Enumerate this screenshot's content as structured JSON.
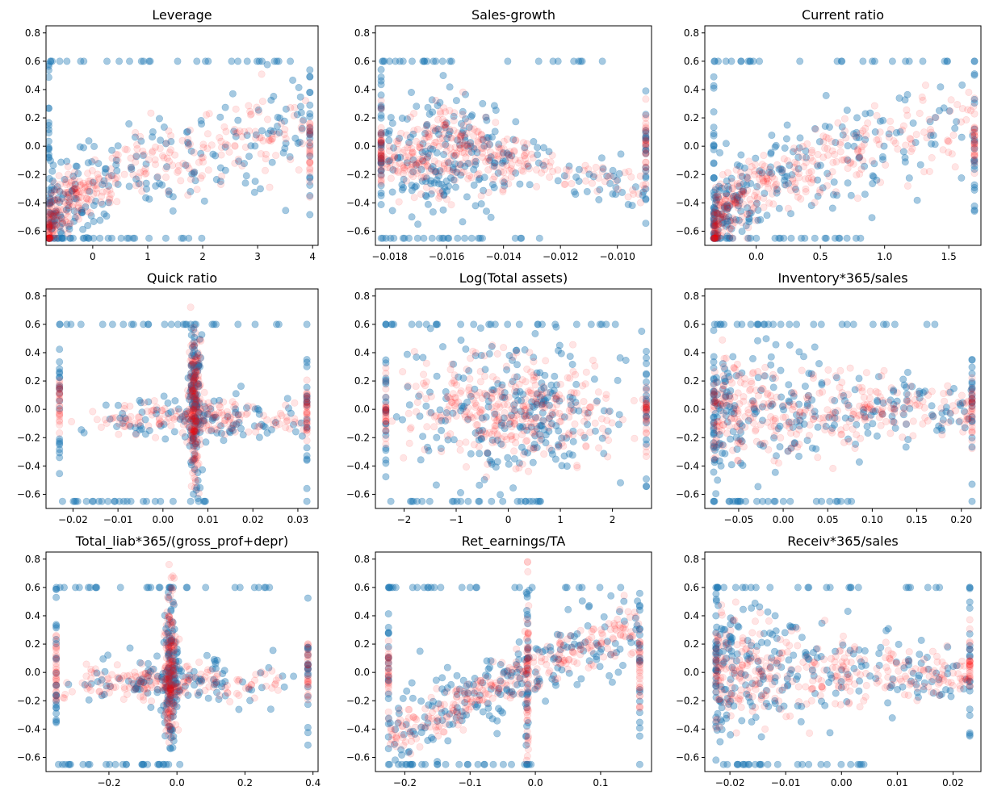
{
  "colors": {
    "series_blue": "#1f77b4",
    "series_red": "#ff0000",
    "background": "#ffffff",
    "axis": "#000000"
  },
  "chart_data": [
    {
      "type": "scatter",
      "title": "Leverage",
      "xlim": [
        -0.85,
        4.1
      ],
      "ylim": [
        -0.7,
        0.85
      ],
      "xticks": [
        0,
        1,
        2,
        3,
        4
      ],
      "xticklabels": [
        "0",
        "1",
        "2",
        "3",
        "4"
      ],
      "yticks": [
        -0.6,
        -0.4,
        -0.2,
        0.0,
        0.2,
        0.4,
        0.6,
        0.8
      ],
      "yticklabels": [
        "−0.6",
        "−0.4",
        "−0.2",
        "0.0",
        "0.2",
        "0.4",
        "0.6",
        "0.8"
      ],
      "series": [
        {
          "name": "blue",
          "color": "#1f77b4",
          "shape": "asc-log",
          "xmin": -0.8,
          "xmax": 3.95,
          "capmin": -0.65,
          "capmax": 0.6,
          "left_edge": -0.8,
          "right_edge": 3.95
        },
        {
          "name": "red",
          "color": "#ff0000",
          "shape": "asc-log",
          "xmin": -0.8,
          "xmax": 3.95,
          "capmin": -0.65,
          "capmax": 0.78,
          "right_edge": 3.95
        }
      ]
    },
    {
      "type": "scatter",
      "title": "Sales-growth",
      "xlim": [
        -0.0185,
        -0.0088
      ],
      "ylim": [
        -0.7,
        0.85
      ],
      "xticks": [
        -0.018,
        -0.016,
        -0.014,
        -0.012,
        -0.01
      ],
      "xticklabels": [
        "−0.018",
        "−0.016",
        "−0.014",
        "−0.012",
        "−0.010"
      ],
      "yticks": [
        -0.6,
        -0.4,
        -0.2,
        0.0,
        0.2,
        0.4,
        0.6,
        0.8
      ],
      "yticklabels": [
        "−0.6",
        "−0.4",
        "−0.2",
        "0.0",
        "0.2",
        "0.4",
        "0.6",
        "0.8"
      ],
      "series": [
        {
          "name": "blue",
          "color": "#1f77b4",
          "shape": "hump",
          "peak": -0.016,
          "xmin": -0.0183,
          "xmax": -0.009,
          "capmin": -0.65,
          "capmax": 0.6,
          "left_edge": -0.0183,
          "right_edge": -0.009
        },
        {
          "name": "red",
          "color": "#ff0000",
          "shape": "hump",
          "peak": -0.016,
          "xmin": -0.0183,
          "xmax": -0.009,
          "capmin": -0.65,
          "capmax": 0.78,
          "left_edge": -0.0183,
          "right_edge": -0.009
        }
      ]
    },
    {
      "type": "scatter",
      "title": "Current ratio",
      "xlim": [
        -0.4,
        1.75
      ],
      "ylim": [
        -0.7,
        0.85
      ],
      "xticks": [
        0,
        0.5,
        1.0,
        1.5
      ],
      "xticklabels": [
        "0.0",
        "0.5",
        "1.0",
        "1.5"
      ],
      "yticks": [
        -0.6,
        -0.4,
        -0.2,
        0.0,
        0.2,
        0.4,
        0.6,
        0.8
      ],
      "yticklabels": [
        "−0.6",
        "−0.4",
        "−0.2",
        "0.0",
        "0.2",
        "0.4",
        "0.6",
        "0.8"
      ],
      "series": [
        {
          "name": "blue",
          "color": "#1f77b4",
          "shape": "asc-log",
          "xmin": -0.33,
          "xmax": 1.7,
          "capmin": -0.65,
          "capmax": 0.6,
          "left_edge": -0.33,
          "right_edge": 1.7
        },
        {
          "name": "red",
          "color": "#ff0000",
          "shape": "asc-log",
          "xmin": -0.33,
          "xmax": 1.7,
          "capmin": -0.65,
          "capmax": 0.78,
          "right_edge": 1.7
        }
      ]
    },
    {
      "type": "scatter",
      "title": "Quick ratio",
      "xlim": [
        -0.026,
        0.0345
      ],
      "ylim": [
        -0.7,
        0.85
      ],
      "xticks": [
        -0.02,
        -0.01,
        0.0,
        0.01,
        0.02,
        0.03
      ],
      "xticklabels": [
        "−0.02",
        "−0.01",
        "0.00",
        "0.01",
        "0.02",
        "0.03"
      ],
      "yticks": [
        -0.6,
        -0.4,
        -0.2,
        0.0,
        0.2,
        0.4,
        0.6,
        0.8
      ],
      "yticklabels": [
        "−0.6",
        "−0.4",
        "−0.2",
        "0.0",
        "0.2",
        "0.4",
        "0.6",
        "0.8"
      ],
      "series": [
        {
          "name": "blue",
          "color": "#1f77b4",
          "shape": "cross",
          "center": 0.007,
          "xmin": -0.023,
          "xmax": 0.032,
          "capmin": -0.65,
          "capmax": 0.6,
          "left_edge": -0.023,
          "right_edge": 0.032
        },
        {
          "name": "red",
          "color": "#ff0000",
          "shape": "cross",
          "center": 0.007,
          "xmin": -0.023,
          "xmax": 0.032,
          "capmin": -0.65,
          "capmax": 0.78,
          "left_edge": -0.023,
          "right_edge": 0.032
        }
      ]
    },
    {
      "type": "scatter",
      "title": "Log(Total assets)",
      "xlim": [
        -2.55,
        2.75
      ],
      "ylim": [
        -0.7,
        0.85
      ],
      "xticks": [
        -2,
        -1,
        0,
        1,
        2
      ],
      "xticklabels": [
        "−2",
        "−1",
        "0",
        "1",
        "2"
      ],
      "yticks": [
        -0.6,
        -0.4,
        -0.2,
        0.0,
        0.2,
        0.4,
        0.6,
        0.8
      ],
      "yticklabels": [
        "−0.6",
        "−0.4",
        "−0.2",
        "0.0",
        "0.2",
        "0.4",
        "0.6",
        "0.8"
      ],
      "series": [
        {
          "name": "blue",
          "color": "#1f77b4",
          "shape": "band",
          "xmin": -2.35,
          "xmax": 2.65,
          "capmin": -0.65,
          "capmax": 0.6,
          "left_edge": -2.35,
          "right_edge": 2.65
        },
        {
          "name": "red",
          "color": "#ff0000",
          "shape": "band",
          "xmin": -2.35,
          "xmax": 2.65,
          "capmin": -0.65,
          "capmax": 0.78,
          "left_edge": -2.35,
          "right_edge": 2.65
        }
      ]
    },
    {
      "type": "scatter",
      "title": "Inventory*365/sales",
      "xlim": [
        -0.088,
        0.222
      ],
      "ylim": [
        -0.7,
        0.85
      ],
      "xticks": [
        -0.05,
        0.0,
        0.05,
        0.1,
        0.15,
        0.2
      ],
      "xticklabels": [
        "−0.05",
        "0.00",
        "0.05",
        "0.10",
        "0.15",
        "0.20"
      ],
      "yticks": [
        -0.6,
        -0.4,
        -0.2,
        0.0,
        0.2,
        0.4,
        0.6,
        0.8
      ],
      "yticklabels": [
        "−0.6",
        "−0.4",
        "−0.2",
        "0.0",
        "0.2",
        "0.4",
        "0.6",
        "0.8"
      ],
      "series": [
        {
          "name": "blue",
          "color": "#1f77b4",
          "shape": "funnel",
          "xmin": -0.078,
          "xmax": 0.212,
          "capmin": -0.65,
          "capmax": 0.6,
          "left_edge": -0.078,
          "right_edge": 0.212
        },
        {
          "name": "red",
          "color": "#ff0000",
          "shape": "funnel",
          "xmin": -0.078,
          "xmax": 0.212,
          "capmin": -0.65,
          "capmax": 0.78,
          "right_edge": 0.212
        }
      ]
    },
    {
      "type": "scatter",
      "title": "Total_liab*365/(gross_prof+depr)",
      "xlim": [
        -0.385,
        0.415
      ],
      "ylim": [
        -0.7,
        0.85
      ],
      "xticks": [
        -0.2,
        0.0,
        0.2,
        0.4
      ],
      "xticklabels": [
        "−0.2",
        "0.0",
        "0.2",
        "0.4"
      ],
      "yticks": [
        -0.6,
        -0.4,
        -0.2,
        0.0,
        0.2,
        0.4,
        0.6,
        0.8
      ],
      "yticklabels": [
        "−0.6",
        "−0.4",
        "−0.2",
        "0.0",
        "0.2",
        "0.4",
        "0.6",
        "0.8"
      ],
      "series": [
        {
          "name": "blue",
          "color": "#1f77b4",
          "shape": "cross",
          "center": -0.02,
          "xmin": -0.355,
          "xmax": 0.385,
          "capmin": -0.65,
          "capmax": 0.6,
          "left_edge": -0.355,
          "right_edge": 0.385
        },
        {
          "name": "red",
          "color": "#ff0000",
          "shape": "cross",
          "center": -0.02,
          "xmin": -0.355,
          "xmax": 0.385,
          "capmin": -0.65,
          "capmax": 0.78,
          "left_edge": -0.355,
          "right_edge": 0.385
        }
      ]
    },
    {
      "type": "scatter",
      "title": "Ret_earnings/TA",
      "xlim": [
        -0.245,
        0.178
      ],
      "ylim": [
        -0.7,
        0.85
      ],
      "xticks": [
        -0.2,
        -0.1,
        0.0,
        0.1
      ],
      "xticklabels": [
        "−0.2",
        "−0.1",
        "0.0",
        "0.1"
      ],
      "yticks": [
        -0.6,
        -0.4,
        -0.2,
        0.0,
        0.2,
        0.4,
        0.6,
        0.8
      ],
      "yticklabels": [
        "−0.6",
        "−0.4",
        "−0.2",
        "0.0",
        "0.2",
        "0.4",
        "0.6",
        "0.8"
      ],
      "series": [
        {
          "name": "blue",
          "color": "#1f77b4",
          "shape": "ramp",
          "spike": -0.012,
          "xmin": -0.225,
          "xmax": 0.16,
          "capmin": -0.65,
          "capmax": 0.6,
          "left_edge": -0.225,
          "right_edge": 0.16
        },
        {
          "name": "red",
          "color": "#ff0000",
          "shape": "ramp",
          "spike": -0.012,
          "xmin": -0.225,
          "xmax": 0.16,
          "capmin": -0.65,
          "capmax": 0.78,
          "left_edge": -0.225,
          "right_edge": 0.16
        }
      ]
    },
    {
      "type": "scatter",
      "title": "Receiv*365/sales",
      "xlim": [
        -0.0245,
        0.025
      ],
      "ylim": [
        -0.7,
        0.85
      ],
      "xticks": [
        -0.02,
        -0.01,
        0.0,
        0.01,
        0.02
      ],
      "xticklabels": [
        "−0.02",
        "−0.01",
        "0.00",
        "0.01",
        "0.02"
      ],
      "yticks": [
        -0.6,
        -0.4,
        -0.2,
        0.0,
        0.2,
        0.4,
        0.6,
        0.8
      ],
      "yticklabels": [
        "−0.6",
        "−0.4",
        "−0.2",
        "0.0",
        "0.2",
        "0.4",
        "0.6",
        "0.8"
      ],
      "series": [
        {
          "name": "blue",
          "color": "#1f77b4",
          "shape": "funnel",
          "xmin": -0.0225,
          "xmax": 0.023,
          "capmin": -0.65,
          "capmax": 0.6,
          "left_edge": -0.0225,
          "right_edge": 0.023
        },
        {
          "name": "red",
          "color": "#ff0000",
          "shape": "funnel",
          "xmin": -0.0225,
          "xmax": 0.023,
          "capmin": -0.65,
          "capmax": 0.78,
          "right_edge": 0.023
        }
      ]
    }
  ]
}
